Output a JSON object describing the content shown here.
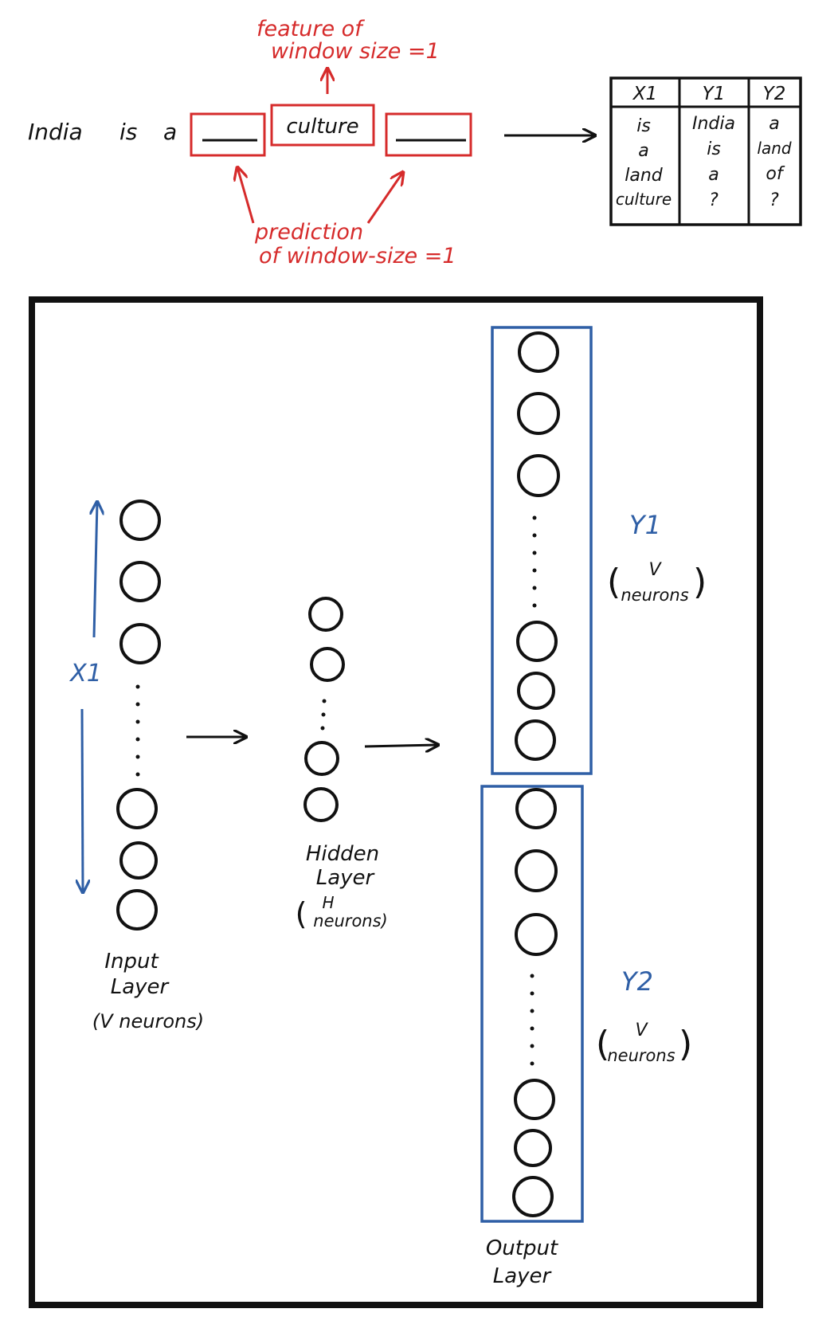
{
  "sentence": {
    "w1": "India",
    "w2": "is",
    "w3": "a",
    "center_word": "culture"
  },
  "annotations": {
    "feature_line1": "feature of",
    "feature_line2": "window size =1",
    "prediction_line1": "prediction",
    "prediction_line2": "of window-size =1"
  },
  "table": {
    "headers": [
      "X1",
      "Y1",
      "Y2"
    ],
    "columns": [
      [
        "is",
        "a",
        "land",
        "culture"
      ],
      [
        "India",
        "is",
        "a",
        "?"
      ],
      [
        "a",
        "land",
        "of",
        "?"
      ]
    ]
  },
  "network": {
    "x_label": "X1",
    "input_label_1": "Input",
    "input_label_2": "Layer",
    "input_label_3": "(V neurons)",
    "hidden_label_1": "Hidden",
    "hidden_label_2": "Layer",
    "hidden_label_3": "H",
    "hidden_label_4": "neurons)",
    "y1_label": "Y1",
    "y1_sub_1": "V",
    "y1_sub_2": "neurons",
    "y2_label": "Y2",
    "y2_sub_1": "V",
    "y2_sub_2": "neurons",
    "output_label_1": "Output",
    "output_label_2": "Layer"
  },
  "colors": {
    "red": "#d62b2b",
    "blue": "#2f5fa6",
    "black": "#111111"
  }
}
